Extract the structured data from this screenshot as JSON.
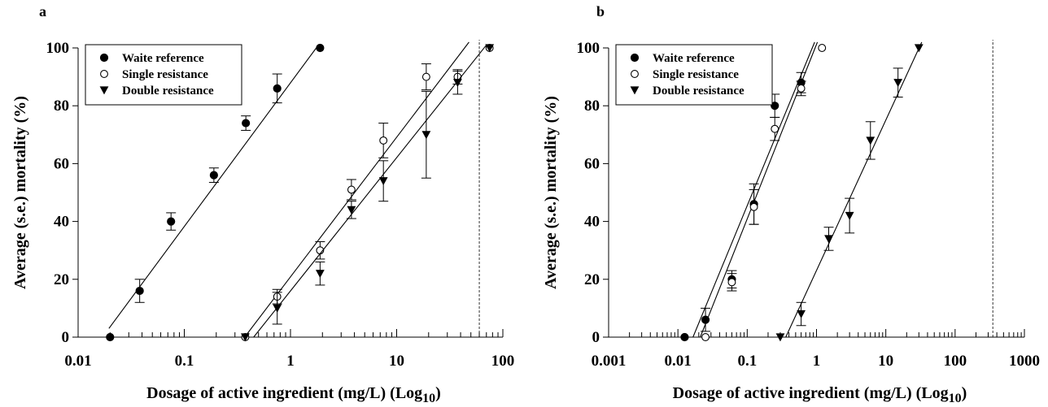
{
  "chart_data": [
    {
      "panel": "a",
      "type": "scatter",
      "xlabel": "Dosage of active ingredient (mg/L) (Log",
      "xlabel_sub": "10",
      "xlabel_close": ")",
      "ylabel": "Average (s.e.) mortality (%)",
      "x_scale": "log",
      "xlim": [
        0.01,
        100
      ],
      "ylim": [
        0,
        100
      ],
      "xticks": [
        0.01,
        0.1,
        1,
        10,
        100
      ],
      "xtick_labels": [
        "0.01",
        "0.1",
        "1",
        "10",
        "100"
      ],
      "yticks": [
        0,
        20,
        40,
        60,
        80,
        100
      ],
      "ytick_labels": [
        "0",
        "20",
        "40",
        "60",
        "80",
        "100"
      ],
      "reference_line_x": 60,
      "legend_position": "top-left",
      "series": [
        {
          "name": "Waite reference",
          "marker": "filled-circle",
          "points": [
            {
              "x": 0.02,
              "y": 0,
              "se": 0
            },
            {
              "x": 0.038,
              "y": 16,
              "se": 4
            },
            {
              "x": 0.075,
              "y": 40,
              "se": 3
            },
            {
              "x": 0.19,
              "y": 56,
              "se": 2.5
            },
            {
              "x": 0.38,
              "y": 74,
              "se": 2.5
            },
            {
              "x": 0.75,
              "y": 86,
              "se": 5
            },
            {
              "x": 1.9,
              "y": 100,
              "se": 0
            }
          ],
          "fit": [
            [
              0.0195,
              3
            ],
            [
              1.75,
              100
            ]
          ]
        },
        {
          "name": "Single resistance",
          "marker": "open-circle",
          "points": [
            {
              "x": 0.375,
              "y": 0,
              "se": 0
            },
            {
              "x": 0.75,
              "y": 14,
              "se": 2.5
            },
            {
              "x": 1.9,
              "y": 30,
              "se": 3
            },
            {
              "x": 3.75,
              "y": 51,
              "se": 3.5
            },
            {
              "x": 7.5,
              "y": 68,
              "se": 6
            },
            {
              "x": 19,
              "y": 90,
              "se": 4.5
            },
            {
              "x": 37.5,
              "y": 90,
              "se": 2.5
            },
            {
              "x": 75,
              "y": 100,
              "se": 0
            }
          ],
          "fit": [
            [
              0.37,
              0
            ],
            [
              48,
              102
            ]
          ]
        },
        {
          "name": "Double resistance",
          "marker": "filled-triangle-down",
          "points": [
            {
              "x": 0.375,
              "y": 0,
              "se": 0
            },
            {
              "x": 0.75,
              "y": 10,
              "se": 5.5
            },
            {
              "x": 1.9,
              "y": 22,
              "se": 4
            },
            {
              "x": 3.75,
              "y": 44,
              "se": 3
            },
            {
              "x": 7.5,
              "y": 54,
              "se": 7
            },
            {
              "x": 19,
              "y": 70,
              "se": 15
            },
            {
              "x": 37.5,
              "y": 88,
              "se": 4
            },
            {
              "x": 75,
              "y": 100,
              "se": 0
            }
          ],
          "fit": [
            [
              0.45,
              0
            ],
            [
              70,
              101
            ]
          ]
        }
      ]
    },
    {
      "panel": "b",
      "type": "scatter",
      "xlabel": "Dosage of active ingredient (mg/L) (Log",
      "xlabel_sub": "10",
      "xlabel_close": ")",
      "ylabel": "Average (s.e.) mortality (%)",
      "x_scale": "log",
      "xlim": [
        0.001,
        1000
      ],
      "ylim": [
        0,
        100
      ],
      "xticks": [
        0.001,
        0.01,
        0.1,
        1,
        10,
        100,
        1000
      ],
      "xtick_labels": [
        "0.001",
        "0.01",
        "0.1",
        "1",
        "10",
        "100",
        "1000"
      ],
      "yticks": [
        0,
        20,
        40,
        60,
        80,
        100
      ],
      "ytick_labels": [
        "0",
        "20",
        "40",
        "60",
        "80",
        "100"
      ],
      "reference_line_x": 350,
      "legend_position": "top-left",
      "series": [
        {
          "name": "Waite reference",
          "marker": "filled-circle",
          "points": [
            {
              "x": 0.0125,
              "y": 0,
              "se": 0
            },
            {
              "x": 0.025,
              "y": 6,
              "se": 4
            },
            {
              "x": 0.06,
              "y": 20,
              "se": 3
            },
            {
              "x": 0.125,
              "y": 46,
              "se": 7
            },
            {
              "x": 0.25,
              "y": 80,
              "se": 4
            },
            {
              "x": 0.6,
              "y": 88,
              "se": 3.5
            }
          ],
          "fit": [
            [
              0.0165,
              0
            ],
            [
              0.94,
              102
            ]
          ]
        },
        {
          "name": "Single resistance",
          "marker": "open-circle",
          "points": [
            {
              "x": 0.025,
              "y": 0,
              "se": 0
            },
            {
              "x": 0.06,
              "y": 19,
              "se": 3
            },
            {
              "x": 0.125,
              "y": 45,
              "se": 6
            },
            {
              "x": 0.25,
              "y": 72,
              "se": 4
            },
            {
              "x": 0.6,
              "y": 86,
              "se": 2.5
            },
            {
              "x": 1.2,
              "y": 100,
              "se": 0
            }
          ],
          "fit": [
            [
              0.021,
              0
            ],
            [
              1.03,
              102
            ]
          ]
        },
        {
          "name": "Double resistance",
          "marker": "filled-triangle-down",
          "points": [
            {
              "x": 0.3,
              "y": 0,
              "se": 0
            },
            {
              "x": 0.6,
              "y": 8,
              "se": 4
            },
            {
              "x": 1.5,
              "y": 34,
              "se": 4
            },
            {
              "x": 3,
              "y": 42,
              "se": 6
            },
            {
              "x": 6,
              "y": 68,
              "se": 6.5
            },
            {
              "x": 15,
              "y": 88,
              "se": 5
            },
            {
              "x": 30,
              "y": 100,
              "se": 0
            }
          ],
          "fit": [
            [
              0.36,
              0
            ],
            [
              33,
              102
            ]
          ]
        }
      ]
    }
  ]
}
